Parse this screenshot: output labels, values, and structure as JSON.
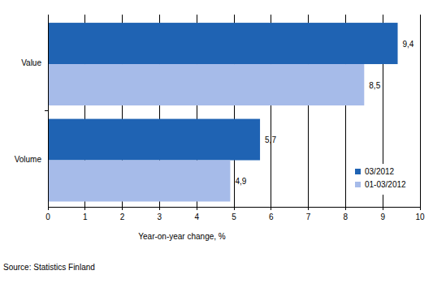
{
  "chart_data": {
    "type": "bar",
    "orientation": "horizontal",
    "categories": [
      "Value",
      "Volume"
    ],
    "series": [
      {
        "name": "03/2012",
        "color": "#1f63b3",
        "values": [
          9.4,
          5.7
        ],
        "value_labels": [
          "9,4",
          "5,7"
        ]
      },
      {
        "name": "01-03/2012",
        "color": "#a6bbe9",
        "values": [
          8.5,
          4.9
        ],
        "value_labels": [
          "8,5",
          "4,9"
        ]
      }
    ],
    "x_label": "Year-on-year change, %",
    "xlim": [
      0,
      10
    ],
    "xticks": [
      0,
      1,
      2,
      3,
      4,
      5,
      6,
      7,
      8,
      9,
      10
    ],
    "grid": true,
    "legend": "lower-right",
    "data_labels": true,
    "source": "Source: Statistics Finland"
  }
}
